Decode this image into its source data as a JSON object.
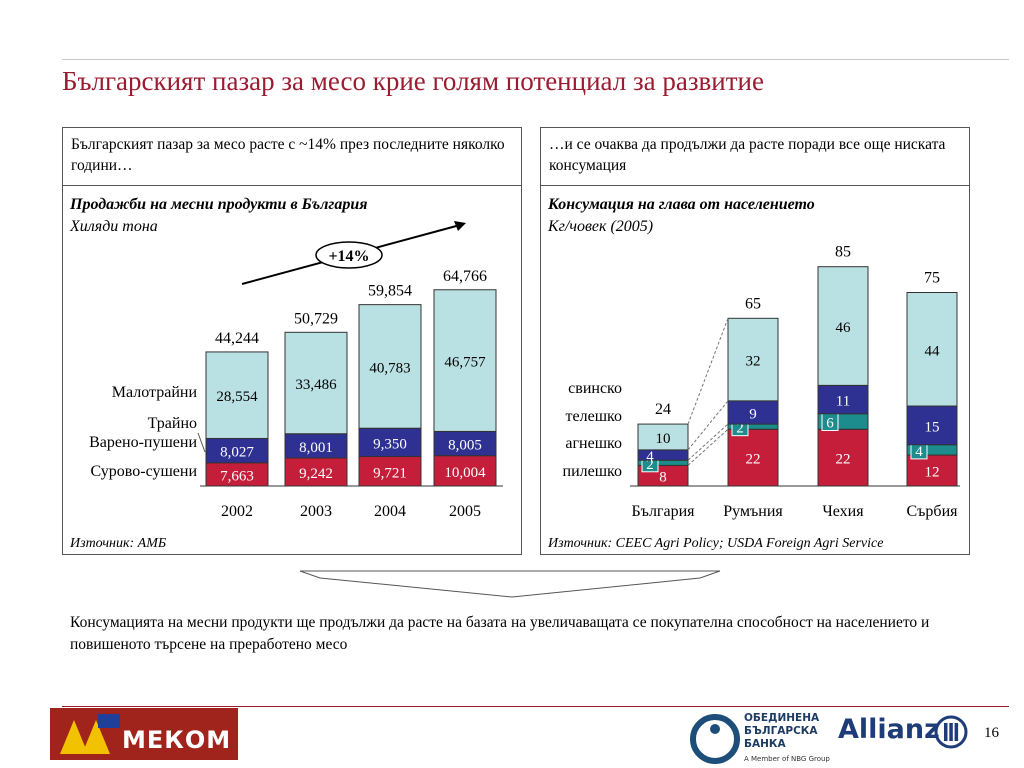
{
  "title": "Българският пазар за месо крие голям потенциал за развитие",
  "left_panel": {
    "header": "Българският пазар за месо расте с ~14% през последните няколко години…",
    "chart_title": "Продажби на месни продукти в България",
    "chart_subtitle": "Хиляди тона",
    "growth_label": "+14%",
    "source": "Източник: АМБ"
  },
  "right_panel": {
    "header": "…и се очаква да продължи да расте поради все още ниската консумация",
    "chart_title": "Консумация на глава от населението",
    "chart_subtitle": "Кг/човек (2005)",
    "source": "Източник: CEEC Agri Policy; USDA Foreign Agri Service"
  },
  "conclusion": "Консумацията на месни продукти ще продължи да расте на базата на увеличаващата се покупателна способност на населението и повишеното търсене на преработено месо",
  "footer": {
    "mekom_logo": "МЕКОМ",
    "ubb_logo_lines": [
      "ОБЕДИНЕНА",
      "БЪЛГАРСКА",
      "БАНКА"
    ],
    "ubb_tagline": "A Member of NBG Group",
    "allianz_logo": "Allianz",
    "page_number": "16"
  },
  "colors": {
    "accent": "#9b1b30",
    "pale_blue": "#b9e0e2",
    "navy": "#2e3192",
    "teal": "#1d8c8c",
    "crimson": "#c41e3a"
  },
  "chart_data": [
    {
      "type": "bar",
      "stacked": true,
      "categories": [
        "2002",
        "2003",
        "2004",
        "2005"
      ],
      "series": [
        {
          "name": "Сурово-сушени",
          "values": [
            "7,663",
            "9,242",
            "9,721",
            "10,004"
          ],
          "color": "#c41e3a"
        },
        {
          "name": "Варено-пушени",
          "values": [
            "8,027",
            "8,001",
            "9,350",
            "8,005"
          ],
          "color": "#2e3192"
        },
        {
          "name": "Трайно",
          "values": [
            "",
            "",
            "",
            ""
          ],
          "color": "#1d8c8c"
        },
        {
          "name": "Малотрайни",
          "values": [
            "28,554",
            "33,486",
            "40,783",
            "46,757"
          ],
          "color": "#b9e0e2"
        }
      ],
      "totals": [
        "44,244",
        "50,729",
        "59,854",
        "64,766"
      ]
    },
    {
      "type": "bar",
      "stacked": true,
      "categories": [
        "България",
        "Румъния",
        "Чехия",
        "Сърбия"
      ],
      "series": [
        {
          "name": "пилешко",
          "values": [
            8,
            22,
            22,
            12
          ],
          "color": "#c41e3a"
        },
        {
          "name": "агнешко",
          "values": [
            2,
            2,
            6,
            4
          ],
          "color": "#1d8c8c"
        },
        {
          "name": "телешко",
          "values": [
            4,
            9,
            11,
            15
          ],
          "color": "#2e3192"
        },
        {
          "name": "свинско",
          "values": [
            10,
            32,
            46,
            44
          ],
          "color": "#b9e0e2"
        }
      ],
      "totals": [
        24,
        65,
        85,
        75
      ]
    }
  ]
}
